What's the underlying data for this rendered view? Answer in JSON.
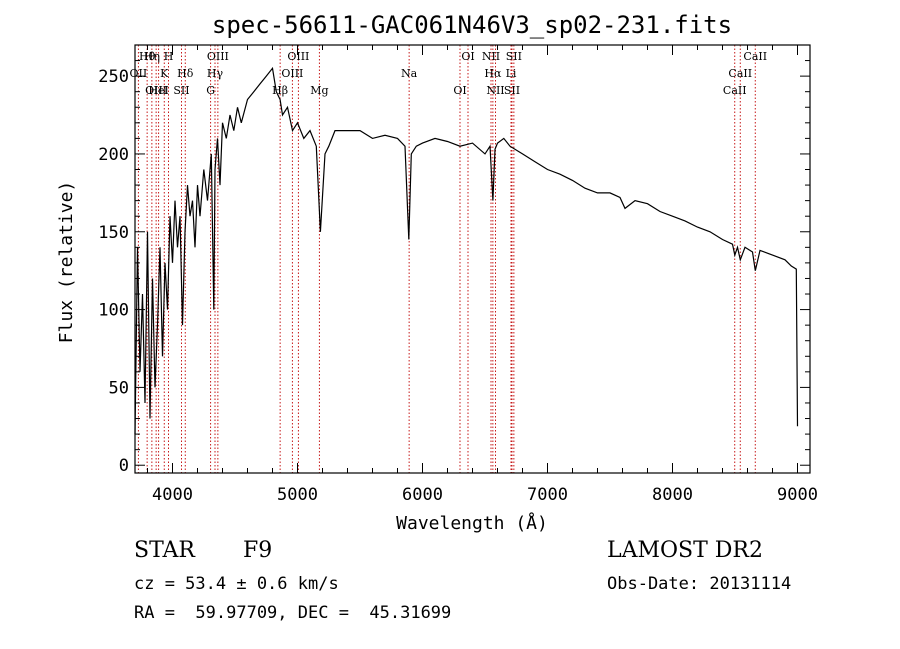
{
  "chart_data": {
    "type": "line",
    "title": "spec-56611-GAC061N46V3_sp02-231.fits",
    "xlabel": "Wavelength (Å)",
    "ylabel": "Flux (relative)",
    "xlim": [
      3700,
      9100
    ],
    "ylim": [
      -5,
      270
    ],
    "x_ticks": [
      4000,
      5000,
      6000,
      7000,
      8000,
      9000
    ],
    "x_tick_labels": [
      "4000",
      "5000",
      "6000",
      "7000",
      "8000",
      "9000"
    ],
    "y_ticks": [
      0,
      50,
      100,
      150,
      200,
      250
    ],
    "y_tick_labels": [
      "0",
      "50",
      "100",
      "150",
      "200",
      "250"
    ],
    "grid": false,
    "series": [
      {
        "x": [
          3700,
          3720,
          3740,
          3760,
          3780,
          3800,
          3820,
          3840,
          3860,
          3880,
          3900,
          3920,
          3940,
          3960,
          3980,
          4000,
          4020,
          4040,
          4060,
          4080,
          4100,
          4120,
          4140,
          4160,
          4180,
          4200,
          4220,
          4250,
          4280,
          4310,
          4330,
          4340,
          4360,
          4380,
          4400,
          4430,
          4460,
          4490,
          4520,
          4550,
          4600,
          4650,
          4700,
          4750,
          4800,
          4830,
          4861,
          4880,
          4920,
          4960,
          5000,
          5050,
          5100,
          5150,
          5183,
          5220,
          5250,
          5300,
          5400,
          5500,
          5600,
          5700,
          5800,
          5860,
          5890,
          5910,
          5950,
          6000,
          6100,
          6200,
          6300,
          6400,
          6500,
          6540,
          6563,
          6580,
          6600,
          6650,
          6700,
          6800,
          6900,
          7000,
          7100,
          7200,
          7300,
          7400,
          7500,
          7580,
          7620,
          7700,
          7800,
          7900,
          8000,
          8100,
          8200,
          8300,
          8400,
          8480,
          8498,
          8520,
          8542,
          8580,
          8640,
          8662,
          8700,
          8800,
          8900,
          8950,
          8990,
          9000
        ],
        "y": [
          20,
          140,
          60,
          110,
          40,
          150,
          30,
          120,
          50,
          90,
          140,
          70,
          130,
          100,
          160,
          130,
          170,
          140,
          160,
          90,
          150,
          180,
          160,
          170,
          140,
          180,
          160,
          190,
          170,
          200,
          100,
          190,
          210,
          180,
          220,
          210,
          225,
          215,
          230,
          220,
          235,
          240,
          245,
          250,
          255,
          240,
          235,
          225,
          230,
          215,
          220,
          210,
          215,
          205,
          150,
          200,
          205,
          215,
          215,
          215,
          210,
          212,
          210,
          205,
          145,
          200,
          205,
          207,
          210,
          208,
          205,
          207,
          200,
          205,
          170,
          203,
          207,
          210,
          205,
          200,
          195,
          190,
          187,
          183,
          178,
          175,
          175,
          172,
          165,
          170,
          168,
          163,
          160,
          157,
          153,
          150,
          145,
          142,
          135,
          140,
          132,
          140,
          137,
          125,
          138,
          135,
          132,
          128,
          126,
          25
        ]
      }
    ],
    "line_labels": [
      {
        "label": "Hθ",
        "x": 3797
      },
      {
        "label": "OII",
        "x": 3727
      },
      {
        "label": "OIII",
        "x": 3869
      },
      {
        "label": "Hη",
        "x": 3835
      },
      {
        "label": "K",
        "x": 3934
      },
      {
        "label": "HeI",
        "x": 3889
      },
      {
        "label": "H",
        "x": 3968
      },
      {
        "label": "Hδ",
        "x": 4102
      },
      {
        "label": "SII",
        "x": 4072
      },
      {
        "label": "OIII",
        "x": 4363
      },
      {
        "label": "Hγ",
        "x": 4340
      },
      {
        "label": "G",
        "x": 4305
      },
      {
        "label": "OIII",
        "x": 5007
      },
      {
        "label": "OIII",
        "x": 4959
      },
      {
        "label": "Hβ",
        "x": 4861
      },
      {
        "label": "Mg",
        "x": 5175
      },
      {
        "label": "Na",
        "x": 5893
      },
      {
        "label": "OI",
        "x": 6300
      },
      {
        "label": "OI",
        "x": 6364
      },
      {
        "label": "Hα",
        "x": 6563
      },
      {
        "label": "SII",
        "x": 6716
      },
      {
        "label": "NII",
        "x": 6548
      },
      {
        "label": "Li",
        "x": 6708
      },
      {
        "label": "NII",
        "x": 6584
      },
      {
        "label": "SII",
        "x": 6731
      },
      {
        "label": "CaII",
        "x": 8542
      },
      {
        "label": "CaII",
        "x": 8498
      },
      {
        "label": "CaII",
        "x": 8662
      }
    ],
    "line_marker_wavelengths": [
      3727,
      3797,
      3835,
      3869,
      3889,
      3934,
      3968,
      4072,
      4102,
      4305,
      4340,
      4363,
      4861,
      4959,
      5007,
      5175,
      5893,
      6300,
      6364,
      6548,
      6563,
      6584,
      6708,
      6716,
      6731,
      8498,
      8542,
      8662
    ],
    "colors": {
      "spectrum": "#000000",
      "line_marker": "#c00000",
      "axes": "#000000"
    }
  },
  "info": {
    "object_class": "STAR",
    "subclass": "F9",
    "redshift": "cz = 53.4 ± 0.6 km/s",
    "coordinates": "RA =  59.97709, DEC =  45.31699",
    "survey": "LAMOST DR2",
    "obs_date": "Obs-Date: 20131114"
  }
}
